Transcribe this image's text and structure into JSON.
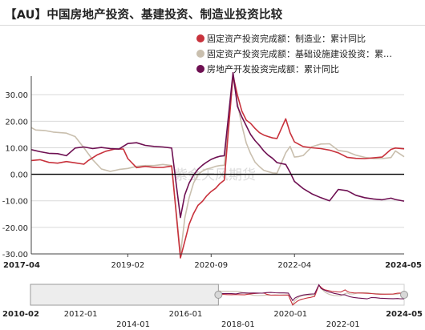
{
  "title": "【AU】中国房地产投资、基建投资、制造业投资比较",
  "watermark": "紫金天风期货",
  "colors": {
    "manufacturing": "#c8323c",
    "infrastructure": "#c9bfae",
    "real_estate": "#6e1052",
    "zero_line": "#000000",
    "grid": "#d9d9d9",
    "navigator_fill": "#e6e6e6",
    "navigator_handle": "#999999"
  },
  "chart_data": {
    "type": "line",
    "title": "【AU】中国房地产投资、基建投资、制造业投资比较",
    "xlabel": "",
    "ylabel": "",
    "ylim": [
      -30,
      37
    ],
    "yticks": [
      30,
      20,
      10,
      0,
      -10,
      -20,
      -30
    ],
    "ytick_labels": [
      "30.00",
      "20.00",
      "10.00",
      "0.00",
      "-10.00",
      "-20.00",
      "-30.00"
    ],
    "xrange": [
      "2017-04",
      "2024-05"
    ],
    "xtick_labels": [
      "2017-04",
      "2019-02",
      "2020-09",
      "2022-04",
      "2024-05"
    ],
    "grid": true,
    "legend_position": "top-right",
    "series": [
      {
        "name": "固定资产投资完成额：制造业：累计同比",
        "color_key": "manufacturing",
        "points": [
          [
            "2017-04",
            5.2
          ],
          [
            "2017-06",
            5.5
          ],
          [
            "2017-08",
            4.5
          ],
          [
            "2017-10",
            4.2
          ],
          [
            "2017-12",
            4.8
          ],
          [
            "2018-02",
            4.3
          ],
          [
            "2018-04",
            3.8
          ],
          [
            "2018-05",
            5.2
          ],
          [
            "2018-07",
            7.3
          ],
          [
            "2018-09",
            8.7
          ],
          [
            "2018-11",
            9.5
          ],
          [
            "2019-01",
            9.5
          ],
          [
            "2019-02",
            5.9
          ],
          [
            "2019-04",
            2.5
          ],
          [
            "2019-06",
            3.0
          ],
          [
            "2019-08",
            2.6
          ],
          [
            "2019-10",
            2.6
          ],
          [
            "2019-12",
            3.1
          ],
          [
            "2020-02",
            -31.5
          ],
          [
            "2020-03",
            -25.2
          ],
          [
            "2020-04",
            -18.8
          ],
          [
            "2020-05",
            -14.8
          ],
          [
            "2020-06",
            -11.7
          ],
          [
            "2020-07",
            -10.2
          ],
          [
            "2020-08",
            -8.1
          ],
          [
            "2020-09",
            -6.5
          ],
          [
            "2020-10",
            -5.3
          ],
          [
            "2020-11",
            -3.5
          ],
          [
            "2020-12",
            -2.2
          ],
          [
            "2021-02",
            37.3
          ],
          [
            "2021-03",
            29.8
          ],
          [
            "2021-04",
            23.8
          ],
          [
            "2021-05",
            20.4
          ],
          [
            "2021-06",
            19.2
          ],
          [
            "2021-07",
            17.3
          ],
          [
            "2021-08",
            15.7
          ],
          [
            "2021-09",
            14.8
          ],
          [
            "2021-10",
            14.2
          ],
          [
            "2021-11",
            13.7
          ],
          [
            "2021-12",
            13.5
          ],
          [
            "2022-02",
            20.9
          ],
          [
            "2022-03",
            15.6
          ],
          [
            "2022-04",
            12.2
          ],
          [
            "2022-06",
            10.4
          ],
          [
            "2022-08",
            10.0
          ],
          [
            "2022-10",
            9.7
          ],
          [
            "2022-12",
            9.1
          ],
          [
            "2023-02",
            8.1
          ],
          [
            "2023-04",
            6.4
          ],
          [
            "2023-06",
            6.0
          ],
          [
            "2023-08",
            5.9
          ],
          [
            "2023-10",
            6.2
          ],
          [
            "2023-12",
            6.5
          ],
          [
            "2024-02",
            9.4
          ],
          [
            "2024-03",
            9.9
          ],
          [
            "2024-05",
            9.6
          ]
        ]
      },
      {
        "name": "固定资产投资完成额：基础设施建设投资：累…",
        "color_key": "infrastructure",
        "points": [
          [
            "2017-04",
            17.6
          ],
          [
            "2017-05",
            16.7
          ],
          [
            "2017-07",
            16.5
          ],
          [
            "2017-09",
            15.9
          ],
          [
            "2017-12",
            15.5
          ],
          [
            "2018-02",
            14.2
          ],
          [
            "2018-04",
            10.0
          ],
          [
            "2018-06",
            5.5
          ],
          [
            "2018-08",
            2.0
          ],
          [
            "2018-10",
            1.1
          ],
          [
            "2018-12",
            1.8
          ],
          [
            "2019-02",
            2.2
          ],
          [
            "2019-04",
            3.0
          ],
          [
            "2019-06",
            3.3
          ],
          [
            "2019-08",
            3.3
          ],
          [
            "2019-10",
            3.7
          ],
          [
            "2019-12",
            3.3
          ],
          [
            "2020-02",
            -30.3
          ],
          [
            "2020-03",
            -16.4
          ],
          [
            "2020-04",
            -8.8
          ],
          [
            "2020-05",
            -3.3
          ],
          [
            "2020-06",
            -0.1
          ],
          [
            "2020-07",
            1.2
          ],
          [
            "2020-08",
            2.0
          ],
          [
            "2020-09",
            2.4
          ],
          [
            "2020-10",
            3.0
          ],
          [
            "2020-11",
            3.3
          ],
          [
            "2020-12",
            3.4
          ],
          [
            "2021-02",
            36.6
          ],
          [
            "2021-03",
            26.8
          ],
          [
            "2021-04",
            18.4
          ],
          [
            "2021-05",
            11.8
          ],
          [
            "2021-06",
            7.8
          ],
          [
            "2021-07",
            4.6
          ],
          [
            "2021-08",
            2.9
          ],
          [
            "2021-09",
            1.5
          ],
          [
            "2021-10",
            1.0
          ],
          [
            "2021-11",
            0.5
          ],
          [
            "2021-12",
            0.4
          ],
          [
            "2022-02",
            8.1
          ],
          [
            "2022-03",
            10.5
          ],
          [
            "2022-04",
            6.5
          ],
          [
            "2022-05",
            6.7
          ],
          [
            "2022-06",
            7.1
          ],
          [
            "2022-08",
            10.4
          ],
          [
            "2022-10",
            11.4
          ],
          [
            "2022-12",
            11.5
          ],
          [
            "2023-02",
            9.0
          ],
          [
            "2023-04",
            8.5
          ],
          [
            "2023-06",
            7.2
          ],
          [
            "2023-08",
            6.4
          ],
          [
            "2023-10",
            5.9
          ],
          [
            "2023-12",
            5.9
          ],
          [
            "2024-02",
            6.3
          ],
          [
            "2024-03",
            8.8
          ],
          [
            "2024-05",
            6.6
          ]
        ]
      },
      {
        "name": "房地产开发投资完成额：累计同比",
        "color_key": "real_estate",
        "points": [
          [
            "2017-04",
            9.3
          ],
          [
            "2017-06",
            8.5
          ],
          [
            "2017-08",
            7.9
          ],
          [
            "2017-10",
            7.8
          ],
          [
            "2017-12",
            7.0
          ],
          [
            "2018-02",
            9.9
          ],
          [
            "2018-04",
            10.3
          ],
          [
            "2018-06",
            9.7
          ],
          [
            "2018-08",
            10.1
          ],
          [
            "2018-10",
            9.7
          ],
          [
            "2018-12",
            9.5
          ],
          [
            "2019-02",
            11.6
          ],
          [
            "2019-04",
            11.9
          ],
          [
            "2019-06",
            10.9
          ],
          [
            "2019-08",
            10.5
          ],
          [
            "2019-10",
            10.3
          ],
          [
            "2019-12",
            9.9
          ],
          [
            "2020-02",
            -16.3
          ],
          [
            "2020-03",
            -7.7
          ],
          [
            "2020-04",
            -3.3
          ],
          [
            "2020-05",
            -0.3
          ],
          [
            "2020-06",
            1.9
          ],
          [
            "2020-07",
            3.4
          ],
          [
            "2020-08",
            4.6
          ],
          [
            "2020-09",
            5.6
          ],
          [
            "2020-10",
            6.3
          ],
          [
            "2020-11",
            6.8
          ],
          [
            "2020-12",
            7.0
          ],
          [
            "2021-02",
            38.3
          ],
          [
            "2021-03",
            25.6
          ],
          [
            "2021-04",
            21.6
          ],
          [
            "2021-05",
            18.3
          ],
          [
            "2021-06",
            15.0
          ],
          [
            "2021-07",
            12.7
          ],
          [
            "2021-08",
            10.9
          ],
          [
            "2021-09",
            8.8
          ],
          [
            "2021-10",
            7.2
          ],
          [
            "2021-11",
            6.0
          ],
          [
            "2021-12",
            4.4
          ],
          [
            "2022-02",
            3.7
          ],
          [
            "2022-03",
            0.7
          ],
          [
            "2022-04",
            -2.7
          ],
          [
            "2022-06",
            -5.4
          ],
          [
            "2022-08",
            -7.4
          ],
          [
            "2022-10",
            -8.8
          ],
          [
            "2022-12",
            -10.0
          ],
          [
            "2023-02",
            -5.7
          ],
          [
            "2023-04",
            -6.2
          ],
          [
            "2023-06",
            -7.9
          ],
          [
            "2023-08",
            -8.8
          ],
          [
            "2023-10",
            -9.3
          ],
          [
            "2023-12",
            -9.6
          ],
          [
            "2024-02",
            -9.0
          ],
          [
            "2024-03",
            -9.5
          ],
          [
            "2024-05",
            -10.1
          ]
        ]
      }
    ],
    "navigator": {
      "range": [
        "2010-02",
        "2024-05"
      ],
      "tick_labels_top": [
        "2010-02",
        "2012-01",
        "2016-01",
        "2020-01",
        "2024-05"
      ],
      "tick_labels_bottom": [
        "2014-01",
        "2018-01",
        "2022-01"
      ],
      "selected_range": [
        "2017-04",
        "2024-05"
      ]
    }
  }
}
